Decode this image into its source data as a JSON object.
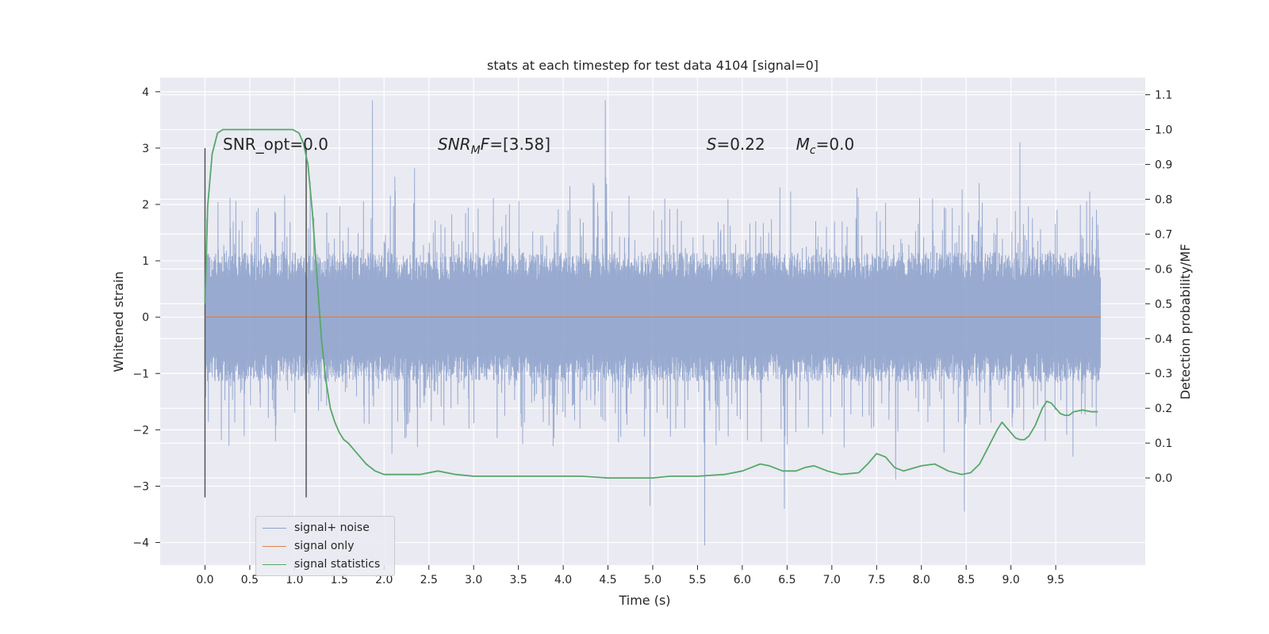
{
  "chart_data": {
    "type": "line",
    "title": "stats at each timestep for test data 4104 [signal=0]",
    "xlabel": "Time (s)",
    "ylabel": "Whitened strain",
    "y2label": "Detection probability/MF",
    "xlim": [
      -0.5,
      10.5
    ],
    "ylim": [
      -4.4,
      4.25
    ],
    "y2lim": [
      -0.25,
      1.149
    ],
    "xticks": [
      0.0,
      0.5,
      1.0,
      1.5,
      2.0,
      2.5,
      3.0,
      3.5,
      4.0,
      4.5,
      5.0,
      5.5,
      6.0,
      6.5,
      7.0,
      7.5,
      8.0,
      8.5,
      9.0,
      9.5
    ],
    "xtick_labels": [
      "0.0",
      "0.5",
      "1.0",
      "1.5",
      "2.0",
      "2.5",
      "3.0",
      "3.5",
      "4.0",
      "4.5",
      "5.0",
      "5.5",
      "6.0",
      "6.5",
      "7.0",
      "7.5",
      "8.0",
      "8.5",
      "9.0",
      "9.5"
    ],
    "yticks": [
      -4,
      -3,
      -2,
      -1,
      0,
      1,
      2,
      3,
      4
    ],
    "ytick_labels": [
      "−4",
      "−3",
      "−2",
      "−1",
      "0",
      "1",
      "2",
      "3",
      "4"
    ],
    "y2ticks": [
      0.0,
      0.1,
      0.2,
      0.3,
      0.4,
      0.5,
      0.6,
      0.7,
      0.8,
      0.9,
      1.0,
      1.1
    ],
    "y2tick_labels": [
      "0.0",
      "0.1",
      "0.2",
      "0.3",
      "0.4",
      "0.5",
      "0.6",
      "0.7",
      "0.8",
      "0.9",
      "1.0",
      "1.1"
    ],
    "grid": true,
    "legend_position": "lower-left",
    "series": [
      {
        "name": "signal+ noise",
        "color": "#8fa3cc",
        "x_range": [
          0.0,
          10.0
        ],
        "amplitude_typical": [
          -1.2,
          1.2
        ],
        "amplitude_max": 3.9,
        "amplitude_min": -4.05,
        "notable_peaks": [
          [
            1.87,
            3.85
          ],
          [
            4.47,
            3.85
          ],
          [
            9.1,
            3.1
          ],
          [
            5.58,
            -4.05
          ],
          [
            8.48,
            -3.45
          ],
          [
            6.47,
            -3.4
          ],
          [
            4.97,
            -3.35
          ]
        ]
      },
      {
        "name": "signal only",
        "color": "#dd8452",
        "x": [
          0.0,
          10.0
        ],
        "y": [
          0.0,
          0.0
        ]
      },
      {
        "name": "signal statistics",
        "color": "#55a868",
        "axis": "right",
        "x": [
          0.0,
          0.03,
          0.08,
          0.14,
          0.2,
          0.3,
          0.4,
          0.55,
          0.7,
          0.85,
          0.98,
          1.05,
          1.1,
          1.15,
          1.2,
          1.25,
          1.3,
          1.35,
          1.4,
          1.45,
          1.5,
          1.55,
          1.6,
          1.7,
          1.8,
          1.9,
          2.0,
          2.2,
          2.4,
          2.6,
          2.8,
          3.0,
          3.3,
          3.6,
          4.0,
          4.2,
          4.5,
          4.8,
          5.0,
          5.2,
          5.5,
          5.8,
          6.0,
          6.1,
          6.2,
          6.3,
          6.45,
          6.6,
          6.7,
          6.8,
          6.95,
          7.1,
          7.3,
          7.4,
          7.5,
          7.6,
          7.7,
          7.8,
          8.0,
          8.15,
          8.3,
          8.45,
          8.55,
          8.65,
          8.75,
          8.85,
          8.9,
          8.95,
          9.0,
          9.05,
          9.1,
          9.15,
          9.2,
          9.27,
          9.35,
          9.4,
          9.45,
          9.5,
          9.55,
          9.6,
          9.65,
          9.7,
          9.8,
          9.9,
          9.97
        ],
        "y": [
          0.5,
          0.78,
          0.93,
          0.99,
          1.0,
          1.0,
          1.0,
          1.0,
          1.0,
          1.0,
          1.0,
          0.99,
          0.96,
          0.9,
          0.76,
          0.58,
          0.4,
          0.28,
          0.2,
          0.16,
          0.13,
          0.11,
          0.1,
          0.07,
          0.04,
          0.02,
          0.01,
          0.01,
          0.01,
          0.02,
          0.01,
          0.005,
          0.005,
          0.005,
          0.005,
          0.005,
          0.0,
          0.0,
          0.0,
          0.005,
          0.005,
          0.01,
          0.02,
          0.03,
          0.04,
          0.035,
          0.02,
          0.02,
          0.03,
          0.035,
          0.02,
          0.01,
          0.015,
          0.04,
          0.07,
          0.06,
          0.03,
          0.02,
          0.035,
          0.04,
          0.02,
          0.01,
          0.015,
          0.04,
          0.09,
          0.14,
          0.16,
          0.145,
          0.13,
          0.115,
          0.11,
          0.11,
          0.12,
          0.15,
          0.2,
          0.22,
          0.215,
          0.2,
          0.185,
          0.18,
          0.18,
          0.19,
          0.195,
          0.19,
          0.19
        ]
      }
    ],
    "vertical_lines": [
      {
        "x": 0.0,
        "y_from": -3.2,
        "y_to": 3.0,
        "color": "#555555"
      },
      {
        "x": 1.13,
        "y_from": -3.2,
        "y_to": 3.0,
        "color": "#555555"
      }
    ],
    "annotations": [
      {
        "id": "snr-opt",
        "text": "SNR_opt=0.0",
        "x": 0.2,
        "y": 3.0
      },
      {
        "id": "snr-mf",
        "base": "SNR",
        "sub": "M",
        "rest": "F=[3.58]",
        "x": 2.6,
        "y": 3.0
      },
      {
        "id": "s",
        "italic": "S",
        "rest": "=0.22",
        "x": 5.6,
        "y": 3.0
      },
      {
        "id": "mc",
        "base": "M",
        "sub": "c",
        "rest": "=0.0",
        "x": 6.6,
        "y": 3.0
      }
    ]
  }
}
